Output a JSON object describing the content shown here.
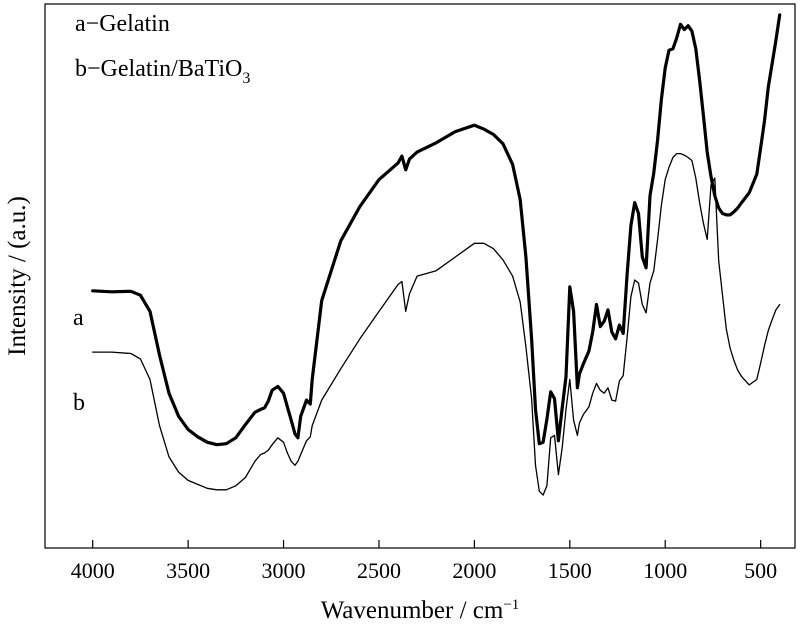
{
  "chart_data": {
    "type": "line",
    "xlabel": "Wavenumber / cm",
    "xlabel_sup": "−1",
    "ylabel": "Intensity / (a.u.)",
    "x_ticks": [
      4000,
      3500,
      3000,
      2500,
      2000,
      1500,
      1000,
      500
    ],
    "xlim": [
      4250,
      320
    ],
    "ylim": [
      0,
      100
    ],
    "x_axis_reversed": true,
    "y_ticks_shown": false,
    "grid": false,
    "legend": {
      "placement": "top-left",
      "entries": [
        {
          "text": "a−Gelatin"
        },
        {
          "text": "b−Gelatin/BaTiO",
          "sub": "3"
        }
      ]
    },
    "series": [
      {
        "name": "a",
        "label": "a",
        "style": "thick",
        "x": [
          4000,
          3900,
          3800,
          3750,
          3700,
          3650,
          3600,
          3550,
          3500,
          3450,
          3400,
          3350,
          3300,
          3250,
          3200,
          3150,
          3120,
          3100,
          3080,
          3060,
          3030,
          3000,
          2980,
          2960,
          2940,
          2925,
          2910,
          2880,
          2860,
          2850,
          2800,
          2700,
          2600,
          2500,
          2400,
          2380,
          2360,
          2340,
          2300,
          2200,
          2100,
          2000,
          1950,
          1900,
          1850,
          1800,
          1760,
          1730,
          1700,
          1680,
          1660,
          1640,
          1620,
          1600,
          1580,
          1560,
          1540,
          1520,
          1500,
          1480,
          1460,
          1450,
          1430,
          1400,
          1380,
          1360,
          1340,
          1320,
          1300,
          1280,
          1260,
          1240,
          1220,
          1200,
          1180,
          1160,
          1140,
          1120,
          1100,
          1080,
          1060,
          1040,
          1020,
          1000,
          980,
          960,
          940,
          920,
          900,
          880,
          860,
          840,
          820,
          800,
          780,
          760,
          740,
          720,
          700,
          680,
          660,
          640,
          620,
          600,
          560,
          520,
          500,
          480,
          460,
          440,
          420,
          400
        ],
        "y": [
          43.1,
          42.9,
          43.0,
          42.2,
          38.9,
          30.0,
          22.2,
          17.5,
          14.8,
          13.3,
          12.2,
          11.7,
          11.9,
          13.1,
          15.8,
          18.3,
          18.9,
          19.2,
          20.6,
          22.8,
          23.6,
          22.2,
          19.4,
          16.7,
          13.9,
          13.1,
          17.5,
          20.8,
          20.0,
          25.0,
          41.1,
          53.3,
          60.3,
          65.8,
          69.2,
          70.6,
          67.8,
          70.0,
          71.4,
          73.3,
          75.6,
          76.9,
          76.1,
          75.0,
          73.1,
          68.9,
          61.7,
          50.0,
          33.3,
          18.9,
          11.9,
          12.2,
          16.9,
          22.5,
          21.1,
          12.5,
          19.2,
          25.6,
          43.9,
          38.9,
          23.3,
          26.1,
          28.1,
          30.8,
          34.7,
          40.3,
          35.8,
          36.9,
          39.2,
          34.7,
          33.3,
          36.1,
          34.4,
          46.4,
          56.4,
          61.1,
          58.9,
          50.0,
          47.8,
          62.5,
          67.2,
          73.9,
          82.2,
          88.6,
          92.2,
          92.5,
          94.7,
          97.5,
          96.4,
          97.2,
          96.1,
          92.5,
          86.1,
          78.9,
          71.4,
          66.4,
          62.5,
          60.0,
          58.9,
          58.6,
          58.6,
          59.2,
          60.0,
          61.1,
          63.1,
          66.9,
          72.2,
          77.8,
          84.7,
          89.4,
          94.2,
          99.4
        ]
      },
      {
        "name": "b",
        "label": "b",
        "style": "thin",
        "x": [
          4000,
          3900,
          3800,
          3750,
          3700,
          3650,
          3600,
          3550,
          3500,
          3450,
          3400,
          3350,
          3300,
          3250,
          3200,
          3150,
          3120,
          3100,
          3080,
          3060,
          3030,
          3000,
          2980,
          2960,
          2940,
          2925,
          2910,
          2880,
          2860,
          2850,
          2800,
          2700,
          2600,
          2500,
          2400,
          2380,
          2360,
          2340,
          2300,
          2200,
          2100,
          2000,
          1950,
          1900,
          1850,
          1800,
          1760,
          1730,
          1700,
          1680,
          1660,
          1640,
          1620,
          1600,
          1580,
          1560,
          1540,
          1520,
          1500,
          1480,
          1460,
          1450,
          1430,
          1400,
          1380,
          1360,
          1340,
          1320,
          1300,
          1280,
          1260,
          1240,
          1220,
          1200,
          1180,
          1160,
          1140,
          1120,
          1100,
          1080,
          1060,
          1040,
          1020,
          1000,
          980,
          960,
          940,
          920,
          900,
          880,
          860,
          840,
          820,
          800,
          780,
          760,
          740,
          720,
          700,
          680,
          660,
          640,
          620,
          600,
          560,
          520,
          500,
          480,
          460,
          440,
          420,
          400
        ],
        "y": [
          30.6,
          30.6,
          30.3,
          29.2,
          25.0,
          15.6,
          9.2,
          6.1,
          4.4,
          3.6,
          2.8,
          2.5,
          2.5,
          3.3,
          5.0,
          8.3,
          9.7,
          10.0,
          10.6,
          11.7,
          13.1,
          12.2,
          10.0,
          8.3,
          7.5,
          8.3,
          9.7,
          12.5,
          13.3,
          15.6,
          20.8,
          27.2,
          33.3,
          38.9,
          44.4,
          45.0,
          38.9,
          42.5,
          46.1,
          47.2,
          50.0,
          52.8,
          52.8,
          51.7,
          49.4,
          46.1,
          40.8,
          31.7,
          21.1,
          7.5,
          2.2,
          1.4,
          3.3,
          13.1,
          13.6,
          5.6,
          11.1,
          18.9,
          25.0,
          16.7,
          13.6,
          16.1,
          17.8,
          19.4,
          22.2,
          24.2,
          22.8,
          22.2,
          23.3,
          20.8,
          20.6,
          24.7,
          25.8,
          33.6,
          41.9,
          45.3,
          44.7,
          40.3,
          38.6,
          44.7,
          47.2,
          53.6,
          60.6,
          65.8,
          68.3,
          70.3,
          71.1,
          71.1,
          70.8,
          70.3,
          69.7,
          66.1,
          61.1,
          56.9,
          53.6,
          64.7,
          66.1,
          49.2,
          42.2,
          35.3,
          31.4,
          28.9,
          26.9,
          25.6,
          23.9,
          25.0,
          28.3,
          31.9,
          35.0,
          37.2,
          39.2,
          40.3
        ]
      }
    ]
  }
}
